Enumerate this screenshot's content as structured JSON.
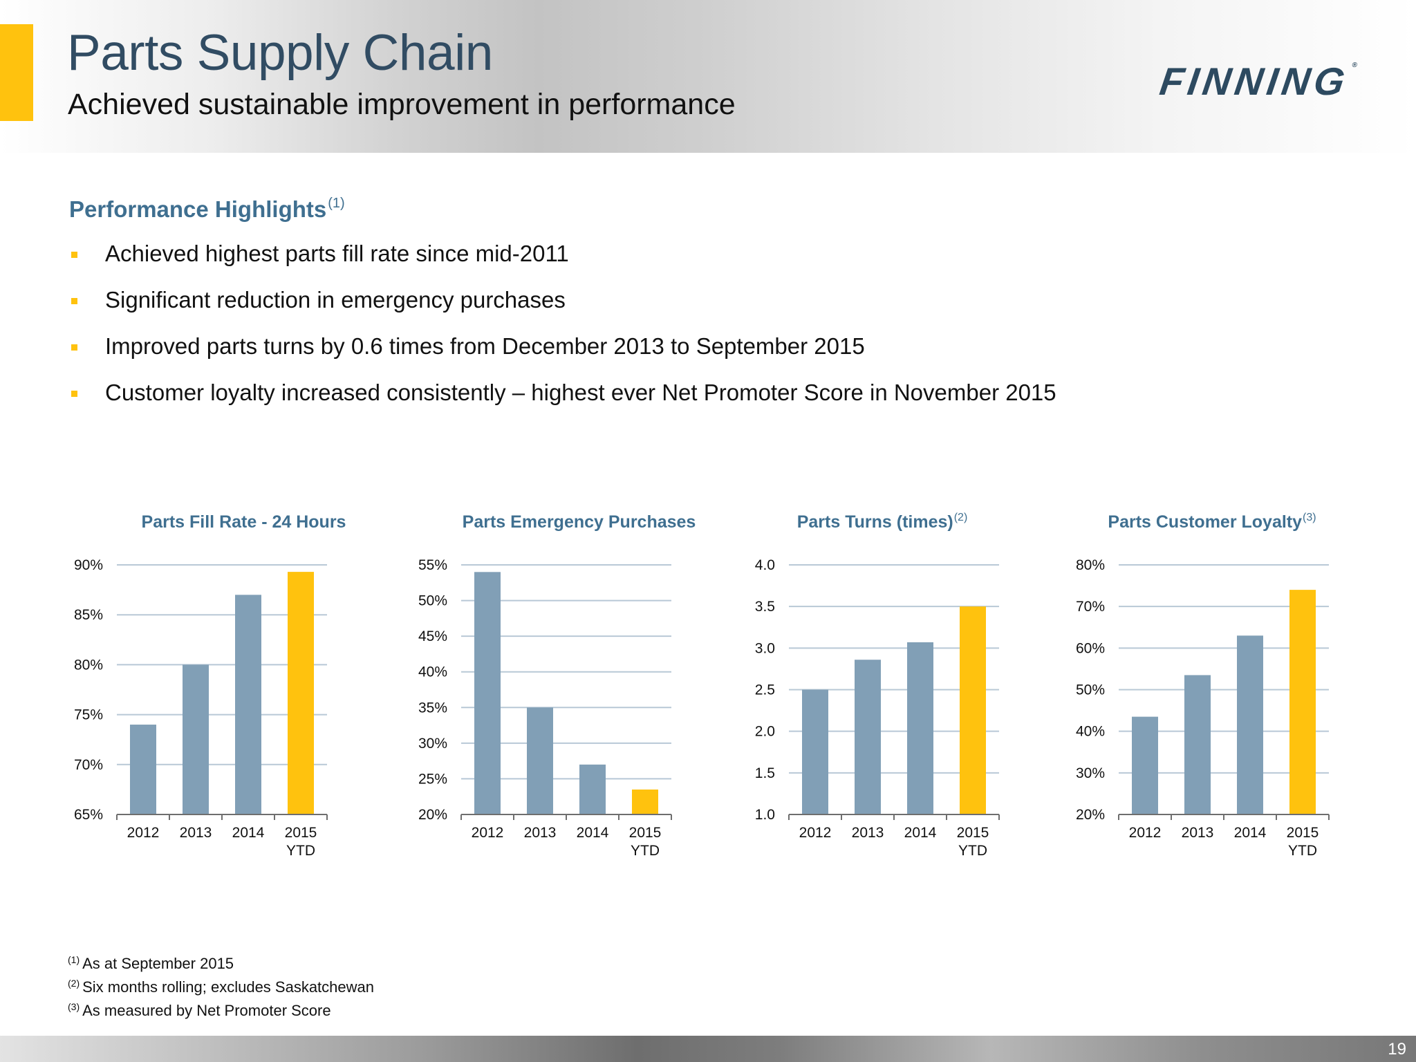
{
  "header": {
    "title": "Parts Supply Chain",
    "subtitle": "Achieved sustainable improvement in performance",
    "logo": "FINNING",
    "logo_mark": "®"
  },
  "highlights": {
    "heading": "Performance Highlights",
    "heading_note": "(1)",
    "items": [
      "Achieved highest parts fill rate since mid-2011",
      "Significant reduction in emergency purchases",
      "Improved parts turns by 0.6 times from December 2013 to September 2015",
      "Customer loyalty increased consistently – highest ever Net Promoter Score in November 2015"
    ]
  },
  "colors": {
    "bar": "#819FB6",
    "highlight_bar": "#FFC20E",
    "gridline": "#b8c8d6",
    "title": "#3f6f90"
  },
  "chart_data": [
    {
      "type": "bar",
      "title": "Parts Fill Rate - 24 Hours",
      "title_note": "",
      "categories": [
        [
          "2012"
        ],
        [
          "2013"
        ],
        [
          "2014"
        ],
        [
          "2015",
          "YTD"
        ]
      ],
      "values": [
        74,
        80,
        87,
        89.3
      ],
      "highlight_index": 3,
      "ylim": [
        65,
        90
      ],
      "yticks": [
        65,
        70,
        75,
        80,
        85,
        90
      ],
      "ytick_labels": [
        "65%",
        "70%",
        "75%",
        "80%",
        "85%",
        "90%"
      ],
      "grid": true
    },
    {
      "type": "bar",
      "title": "Parts Emergency Purchases",
      "title_note": "",
      "categories": [
        [
          "2012"
        ],
        [
          "2013"
        ],
        [
          "2014"
        ],
        [
          "2015",
          "YTD"
        ]
      ],
      "values": [
        54,
        35,
        27,
        23.5
      ],
      "highlight_index": 3,
      "ylim": [
        20,
        55
      ],
      "yticks": [
        20,
        25,
        30,
        35,
        40,
        45,
        50,
        55
      ],
      "ytick_labels": [
        "20%",
        "25%",
        "30%",
        "35%",
        "40%",
        "45%",
        "50%",
        "55%"
      ],
      "grid": true
    },
    {
      "type": "bar",
      "title": "Parts Turns (times)",
      "title_note": "(2)",
      "categories": [
        [
          "2012"
        ],
        [
          "2013"
        ],
        [
          "2014"
        ],
        [
          "2015",
          "YTD"
        ]
      ],
      "values": [
        2.5,
        2.86,
        3.07,
        3.5
      ],
      "highlight_index": 3,
      "ylim": [
        1.0,
        4.0
      ],
      "yticks": [
        1.0,
        1.5,
        2.0,
        2.5,
        3.0,
        3.5,
        4.0
      ],
      "ytick_labels": [
        "1.0",
        "1.5",
        "2.0",
        "2.5",
        "3.0",
        "3.5",
        "4.0"
      ],
      "grid": true
    },
    {
      "type": "bar",
      "title": "Parts Customer Loyalty",
      "title_note": "(3)",
      "categories": [
        [
          "2012"
        ],
        [
          "2013"
        ],
        [
          "2014"
        ],
        [
          "2015",
          "YTD"
        ]
      ],
      "values": [
        43.5,
        53.5,
        63,
        74
      ],
      "highlight_index": 3,
      "ylim": [
        20,
        80
      ],
      "yticks": [
        20,
        30,
        40,
        50,
        60,
        70,
        80
      ],
      "ytick_labels": [
        "20%",
        "30%",
        "40%",
        "50%",
        "60%",
        "70%",
        "80%"
      ],
      "grid": true
    }
  ],
  "footnotes": [
    {
      "mark": "(1)",
      "text": "As at September 2015"
    },
    {
      "mark": "(2)",
      "text": "Six months rolling; excludes Saskatchewan"
    },
    {
      "mark": "(3)",
      "text": "As measured by Net Promoter Score"
    }
  ],
  "page_number": "19"
}
